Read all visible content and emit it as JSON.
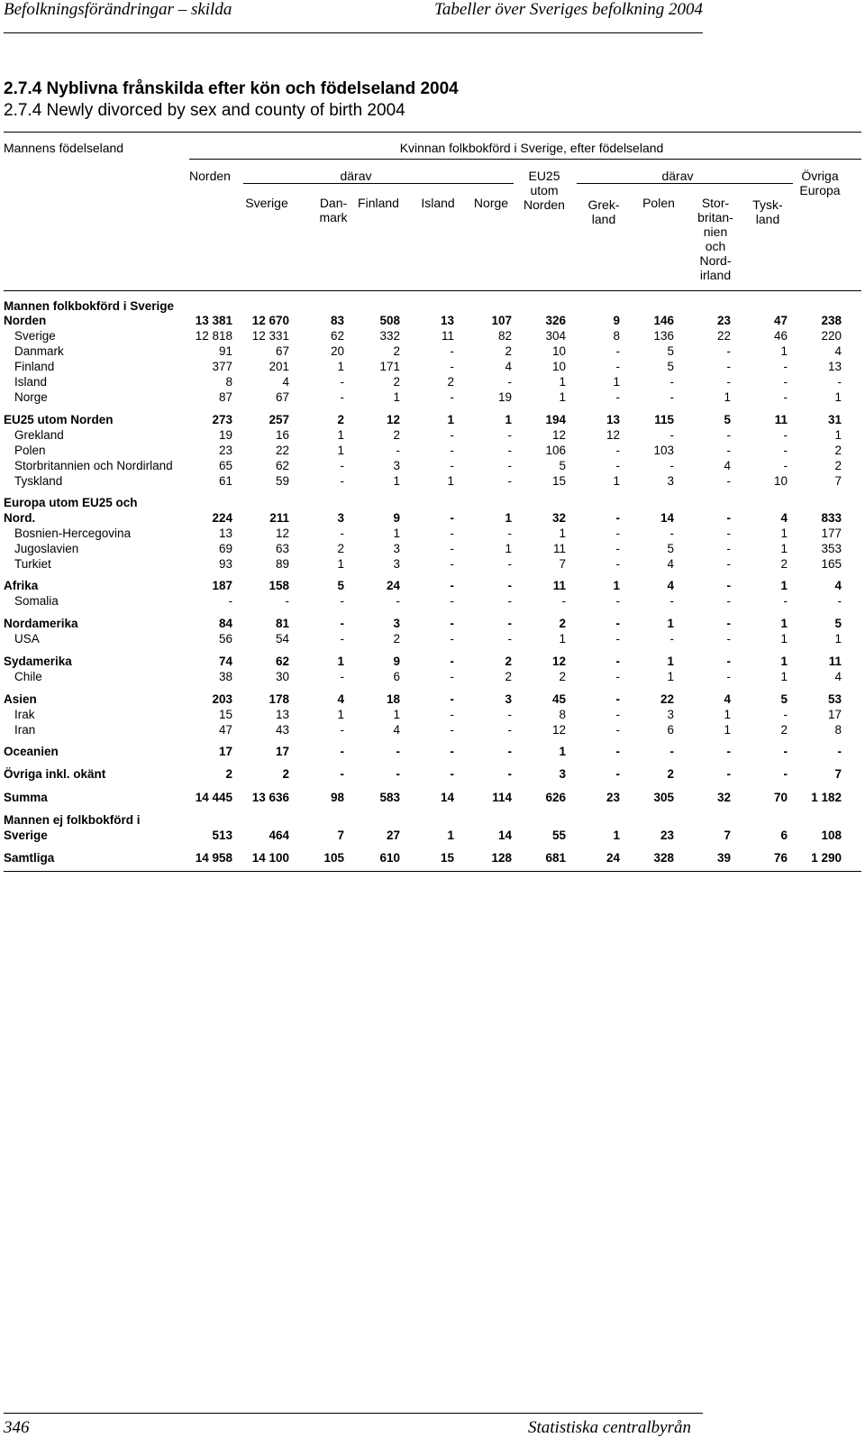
{
  "running_header": {
    "left": "Befolkningsförändringar – skilda",
    "right": "Tabeller över Sveriges befolkning 2004"
  },
  "title_sv": "2.7.4 Nyblivna frånskilda efter kön och födelseland 2004",
  "title_en": "2.7.4 Newly divorced by sex and county of birth 2004",
  "table": {
    "stub_header": "Mannens födelseland",
    "spanner": "Kvinnan folkbokförd i Sverige, efter födelseland",
    "group1_label": "därav",
    "group2_label": "därav",
    "columns": [
      "Norden",
      "Sverige",
      "Dan-\nmark",
      "Finland",
      "Island",
      "Norge",
      "EU25\nutom\nNorden",
      "Grek-\nland",
      "Polen",
      "Stor-\nbritan-\nnien\noch\nNord-\nirland",
      "Tysk-\nland",
      "Övriga\nEuropa"
    ],
    "section_heading": "Mannen folkbokförd i Sverige",
    "rows": [
      {
        "label": "Norden",
        "bold": true,
        "sub": false,
        "values": [
          "13 381",
          "12 670",
          "83",
          "508",
          "13",
          "107",
          "326",
          "9",
          "146",
          "23",
          "47",
          "238"
        ]
      },
      {
        "label": "Sverige",
        "bold": false,
        "sub": true,
        "values": [
          "12 818",
          "12 331",
          "62",
          "332",
          "11",
          "82",
          "304",
          "8",
          "136",
          "22",
          "46",
          "220"
        ]
      },
      {
        "label": "Danmark",
        "bold": false,
        "sub": true,
        "values": [
          "91",
          "67",
          "20",
          "2",
          "-",
          "2",
          "10",
          "-",
          "5",
          "-",
          "1",
          "4"
        ]
      },
      {
        "label": "Finland",
        "bold": false,
        "sub": true,
        "values": [
          "377",
          "201",
          "1",
          "171",
          "-",
          "4",
          "10",
          "-",
          "5",
          "-",
          "-",
          "13"
        ]
      },
      {
        "label": "Island",
        "bold": false,
        "sub": true,
        "values": [
          "8",
          "4",
          "-",
          "2",
          "2",
          "-",
          "1",
          "1",
          "-",
          "-",
          "-",
          "-"
        ]
      },
      {
        "label": "Norge",
        "bold": false,
        "sub": true,
        "values": [
          "87",
          "67",
          "-",
          "1",
          "-",
          "19",
          "1",
          "-",
          "-",
          "1",
          "-",
          "1"
        ]
      },
      {
        "label": "EU25 utom Norden",
        "bold": true,
        "sub": false,
        "values": [
          "273",
          "257",
          "2",
          "12",
          "1",
          "1",
          "194",
          "13",
          "115",
          "5",
          "11",
          "31"
        ]
      },
      {
        "label": "Grekland",
        "bold": false,
        "sub": true,
        "values": [
          "19",
          "16",
          "1",
          "2",
          "-",
          "-",
          "12",
          "12",
          "-",
          "-",
          "-",
          "1"
        ]
      },
      {
        "label": "Polen",
        "bold": false,
        "sub": true,
        "values": [
          "23",
          "22",
          "1",
          "-",
          "-",
          "-",
          "106",
          "-",
          "103",
          "-",
          "-",
          "2"
        ]
      },
      {
        "label": "Storbritannien och Nordirland",
        "bold": false,
        "sub": true,
        "values": [
          "65",
          "62",
          "-",
          "3",
          "-",
          "-",
          "5",
          "-",
          "-",
          "4",
          "-",
          "2"
        ]
      },
      {
        "label": "Tyskland",
        "bold": false,
        "sub": true,
        "values": [
          "61",
          "59",
          "-",
          "1",
          "1",
          "-",
          "15",
          "1",
          "3",
          "-",
          "10",
          "7"
        ]
      },
      {
        "label": "Nord.",
        "pre": "Europa utom EU25 och",
        "bold": true,
        "sub": false,
        "values": [
          "224",
          "211",
          "3",
          "9",
          "-",
          "1",
          "32",
          "-",
          "14",
          "-",
          "4",
          "833"
        ]
      },
      {
        "label": "Bosnien-Hercegovina",
        "bold": false,
        "sub": true,
        "values": [
          "13",
          "12",
          "-",
          "1",
          "-",
          "-",
          "1",
          "-",
          "-",
          "-",
          "1",
          "177"
        ]
      },
      {
        "label": "Jugoslavien",
        "bold": false,
        "sub": true,
        "values": [
          "69",
          "63",
          "2",
          "3",
          "-",
          "1",
          "11",
          "-",
          "5",
          "-",
          "1",
          "353"
        ]
      },
      {
        "label": "Turkiet",
        "bold": false,
        "sub": true,
        "values": [
          "93",
          "89",
          "1",
          "3",
          "-",
          "-",
          "7",
          "-",
          "4",
          "-",
          "2",
          "165"
        ]
      },
      {
        "label": "Afrika",
        "bold": true,
        "sub": false,
        "values": [
          "187",
          "158",
          "5",
          "24",
          "-",
          "-",
          "11",
          "1",
          "4",
          "-",
          "1",
          "4"
        ]
      },
      {
        "label": "Somalia",
        "bold": false,
        "sub": true,
        "values": [
          "-",
          "-",
          "-",
          "-",
          "-",
          "-",
          "-",
          "-",
          "-",
          "-",
          "-",
          "-"
        ]
      },
      {
        "label": "Nordamerika",
        "bold": true,
        "sub": false,
        "values": [
          "84",
          "81",
          "-",
          "3",
          "-",
          "-",
          "2",
          "-",
          "1",
          "-",
          "1",
          "5"
        ]
      },
      {
        "label": "USA",
        "bold": false,
        "sub": true,
        "values": [
          "56",
          "54",
          "-",
          "2",
          "-",
          "-",
          "1",
          "-",
          "-",
          "-",
          "1",
          "1"
        ]
      },
      {
        "label": "Sydamerika",
        "bold": true,
        "sub": false,
        "values": [
          "74",
          "62",
          "1",
          "9",
          "-",
          "2",
          "12",
          "-",
          "1",
          "-",
          "1",
          "11"
        ]
      },
      {
        "label": "Chile",
        "bold": false,
        "sub": true,
        "values": [
          "38",
          "30",
          "-",
          "6",
          "-",
          "2",
          "2",
          "-",
          "1",
          "-",
          "1",
          "4"
        ]
      },
      {
        "label": "Asien",
        "bold": true,
        "sub": false,
        "values": [
          "203",
          "178",
          "4",
          "18",
          "-",
          "3",
          "45",
          "-",
          "22",
          "4",
          "5",
          "53"
        ]
      },
      {
        "label": "Irak",
        "bold": false,
        "sub": true,
        "values": [
          "15",
          "13",
          "1",
          "1",
          "-",
          "-",
          "8",
          "-",
          "3",
          "1",
          "-",
          "17"
        ]
      },
      {
        "label": "Iran",
        "bold": false,
        "sub": true,
        "values": [
          "47",
          "43",
          "-",
          "4",
          "-",
          "-",
          "12",
          "-",
          "6",
          "1",
          "2",
          "8"
        ]
      },
      {
        "label": "Oceanien",
        "bold": true,
        "sub": false,
        "values": [
          "17",
          "17",
          "-",
          "-",
          "-",
          "-",
          "1",
          "-",
          "-",
          "-",
          "-",
          "-"
        ]
      },
      {
        "label": "Övriga inkl. okänt",
        "bold": true,
        "sub": false,
        "values": [
          "2",
          "2",
          "-",
          "-",
          "-",
          "-",
          "3",
          "-",
          "2",
          "-",
          "-",
          "7"
        ]
      },
      {
        "label": "Summa",
        "bold": true,
        "sub": false,
        "values": [
          "14 445",
          "13 636",
          "98",
          "583",
          "14",
          "114",
          "626",
          "23",
          "305",
          "32",
          "70",
          "1 182"
        ]
      },
      {
        "label": "Sverige",
        "pre": "Mannen ej folkbokförd i",
        "bold": true,
        "sub": false,
        "values": [
          "513",
          "464",
          "7",
          "27",
          "1",
          "14",
          "55",
          "1",
          "23",
          "7",
          "6",
          "108"
        ]
      },
      {
        "label": "Samtliga",
        "bold": true,
        "sub": false,
        "values": [
          "14 958",
          "14 100",
          "105",
          "610",
          "15",
          "128",
          "681",
          "24",
          "328",
          "39",
          "76",
          "1 290"
        ]
      }
    ]
  },
  "footer": {
    "page_number": "346",
    "publisher": "Statistiska centralbyrån"
  }
}
